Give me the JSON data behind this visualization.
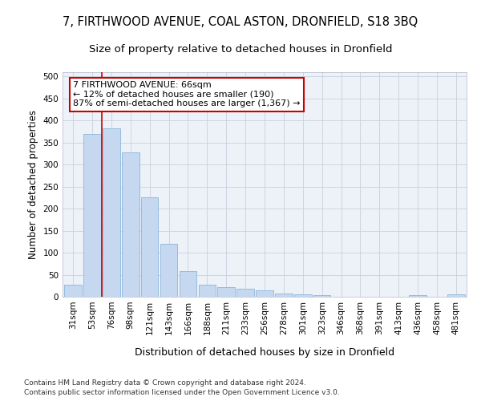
{
  "title1": "7, FIRTHWOOD AVENUE, COAL ASTON, DRONFIELD, S18 3BQ",
  "title2": "Size of property relative to detached houses in Dronfield",
  "xlabel": "Distribution of detached houses by size in Dronfield",
  "ylabel": "Number of detached properties",
  "footer1": "Contains HM Land Registry data © Crown copyright and database right 2024.",
  "footer2": "Contains public sector information licensed under the Open Government Licence v3.0.",
  "categories": [
    "31sqm",
    "53sqm",
    "76sqm",
    "98sqm",
    "121sqm",
    "143sqm",
    "166sqm",
    "188sqm",
    "211sqm",
    "233sqm",
    "256sqm",
    "278sqm",
    "301sqm",
    "323sqm",
    "346sqm",
    "368sqm",
    "391sqm",
    "413sqm",
    "436sqm",
    "458sqm",
    "481sqm"
  ],
  "values": [
    28,
    370,
    383,
    327,
    225,
    120,
    58,
    28,
    22,
    18,
    14,
    7,
    5,
    4,
    0,
    0,
    0,
    0,
    4,
    0,
    5
  ],
  "bar_color": "#c5d8f0",
  "bar_edge_color": "#7aaed6",
  "vline_color": "#cc0000",
  "vline_x": 1.5,
  "annotation_text": "7 FIRTHWOOD AVENUE: 66sqm\n← 12% of detached houses are smaller (190)\n87% of semi-detached houses are larger (1,367) →",
  "annotation_box_facecolor": "white",
  "annotation_box_edgecolor": "#cc0000",
  "ylim": [
    0,
    510
  ],
  "yticks": [
    0,
    50,
    100,
    150,
    200,
    250,
    300,
    350,
    400,
    450,
    500
  ],
  "grid_color": "#c8d0dc",
  "bg_color": "#edf2f9",
  "title1_fontsize": 10.5,
  "title2_fontsize": 9.5,
  "xlabel_fontsize": 9,
  "ylabel_fontsize": 8.5,
  "tick_fontsize": 7.5,
  "annotation_fontsize": 8,
  "footer_fontsize": 6.5
}
